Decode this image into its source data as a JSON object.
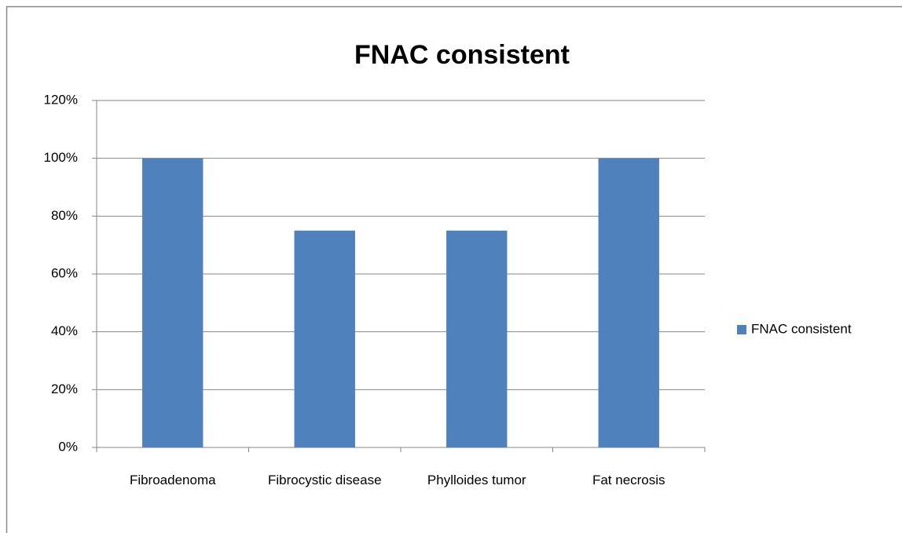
{
  "chart_data": {
    "type": "bar",
    "title": "FNAC consistent",
    "categories": [
      "Fibroadenoma",
      "Fibrocystic disease",
      "Phylloides tumor",
      "Fat necrosis"
    ],
    "series": [
      {
        "name": "FNAC consistent",
        "color": "#4f81bd",
        "values": [
          100,
          75,
          75,
          100
        ]
      }
    ],
    "ylim": [
      0,
      120
    ],
    "yticks": [
      {
        "value": 0,
        "label": "0%"
      },
      {
        "value": 20,
        "label": "20%"
      },
      {
        "value": 40,
        "label": "40%"
      },
      {
        "value": 60,
        "label": "60%"
      },
      {
        "value": 80,
        "label": "80%"
      },
      {
        "value": 100,
        "label": "100%"
      },
      {
        "value": 120,
        "label": "120%"
      }
    ],
    "grid": true,
    "legend": "right"
  }
}
